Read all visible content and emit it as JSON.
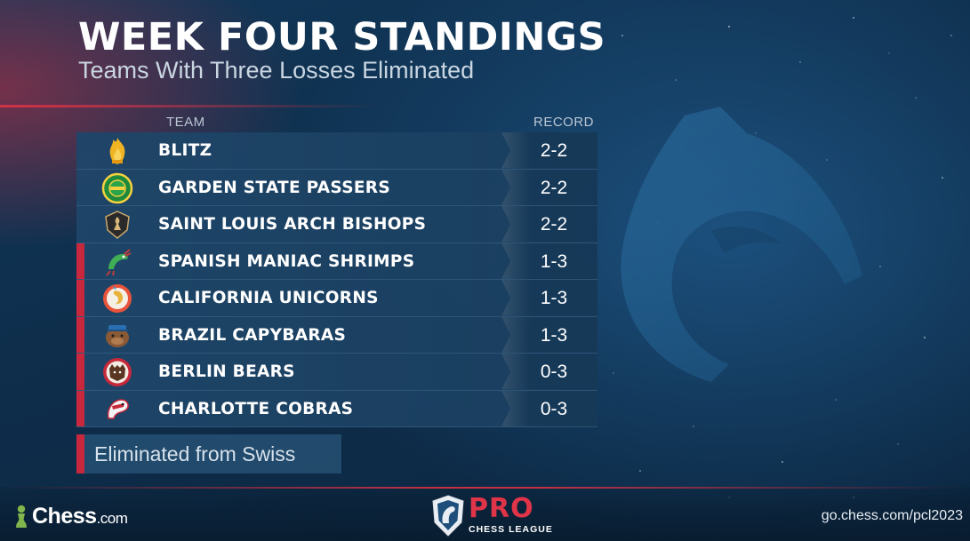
{
  "graphic": {
    "title": "WEEK FOUR STANDINGS",
    "subtitle": "Teams With Three Losses Eliminated"
  },
  "table": {
    "header_team": "TEAM",
    "header_record": "RECORD",
    "rows": [
      {
        "team": "BLITZ",
        "record": "2-2",
        "eliminated": false,
        "logo_icon": "flame-logo-icon"
      },
      {
        "team": "GARDEN STATE PASSERS",
        "record": "2-2",
        "eliminated": false,
        "logo_icon": "green-badge-logo-icon"
      },
      {
        "team": "SAINT LOUIS ARCH BISHOPS",
        "record": "2-2",
        "eliminated": false,
        "logo_icon": "bishop-shield-logo-icon"
      },
      {
        "team": "SPANISH MANIAC SHRIMPS",
        "record": "1-3",
        "eliminated": true,
        "logo_icon": "shrimp-logo-icon"
      },
      {
        "team": "CALIFORNIA UNICORNS",
        "record": "1-3",
        "eliminated": true,
        "logo_icon": "unicorn-logo-icon"
      },
      {
        "team": "BRAZIL CAPYBARAS",
        "record": "1-3",
        "eliminated": true,
        "logo_icon": "capybara-logo-icon"
      },
      {
        "team": "BERLIN BEARS",
        "record": "0-3",
        "eliminated": true,
        "logo_icon": "bear-logo-icon"
      },
      {
        "team": "CHARLOTTE COBRAS",
        "record": "0-3",
        "eliminated": true,
        "logo_icon": "cobra-logo-icon"
      }
    ]
  },
  "legend": {
    "label": "Eliminated from Swiss",
    "color": "#c8283e"
  },
  "footer": {
    "chess_brand": "Chess",
    "chess_tld": ".com",
    "league_pro": "PRO",
    "league_name": "CHESS LEAGUE",
    "url": "go.chess.com/pcl2023"
  },
  "colors": {
    "accent_red": "#c8283e",
    "background": "#0e2d4a",
    "pawn_green": "#81b64c"
  }
}
